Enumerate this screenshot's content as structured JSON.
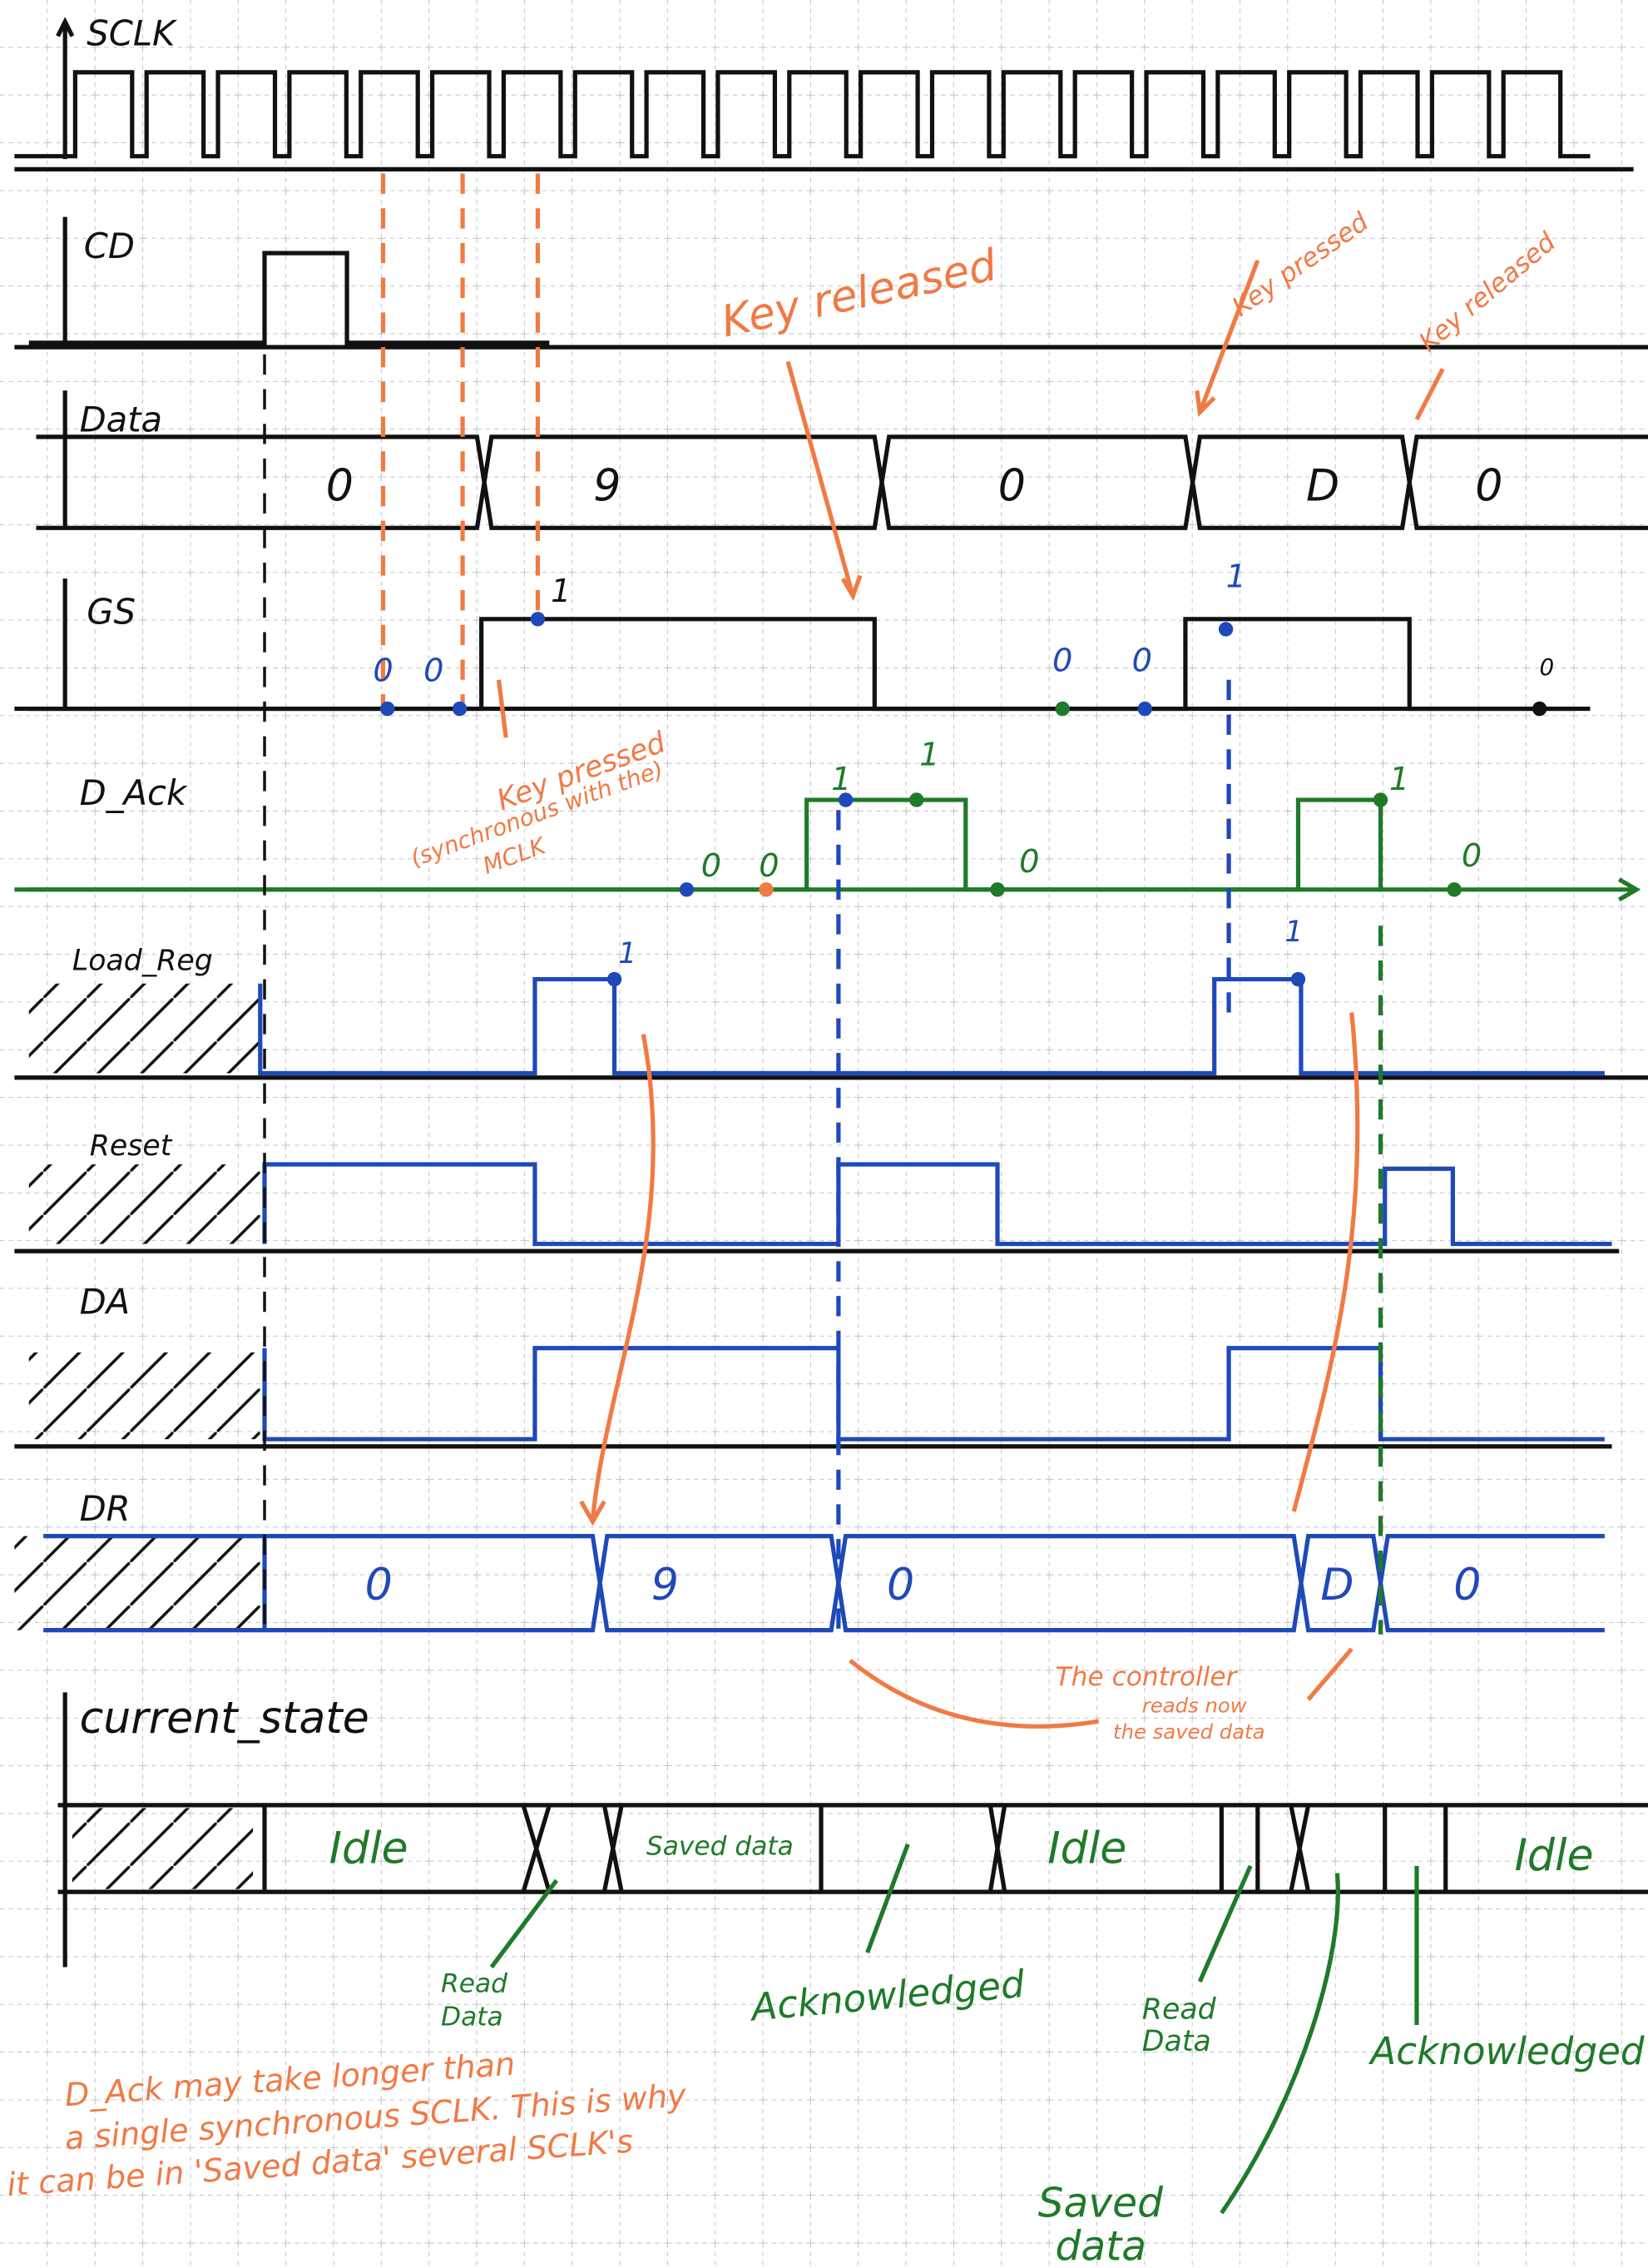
{
  "signals": [
    "SCLK",
    "CD",
    "Data",
    "GS",
    "D_Ack",
    "Load_Reg",
    "Reset",
    "DA",
    "DR",
    "current_state"
  ],
  "data_bus": [
    "0",
    "9",
    "0",
    "D",
    "0"
  ],
  "gs_marks": [
    "0",
    "0",
    "1",
    "0",
    "0",
    "1",
    "0"
  ],
  "d_ack_marks": [
    "0",
    "0",
    "1",
    "1",
    "0",
    "1",
    "0"
  ],
  "load_reg_marks": [
    "1",
    "1"
  ],
  "dr_bus": [
    "0",
    "9",
    "0",
    "D",
    "0"
  ],
  "states": [
    "Idle",
    "Saved data",
    "Idle",
    "Idle"
  ],
  "annotations": {
    "key_released_1": "Key released",
    "key_pressed_1": "Key pressed",
    "key_released_2": "Key released",
    "key_pressed_sync": [
      "Key pressed",
      "(synchronous with the)",
      "MCLK"
    ],
    "controller_reads": [
      "The controller",
      "reads now",
      "the saved data"
    ],
    "read_data_1": [
      "Read",
      "Data"
    ],
    "acknowledged_1": "Acknowledged",
    "read_data_2": [
      "Read",
      "Data"
    ],
    "acknowledged_2": "Acknowledged",
    "saved_data": [
      "Saved",
      "data"
    ],
    "note": [
      "D_Ack may take longer than",
      "a single synchronous SCLK. This is why",
      "it can be in 'Saved data' several SCLK's"
    ]
  }
}
